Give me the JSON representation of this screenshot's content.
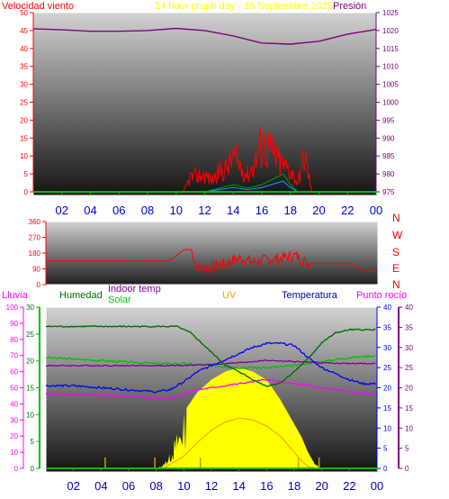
{
  "header": {
    "left_label": "Velocidad viento",
    "center_title": "24 hour graph day - 15 Septiembre 2025",
    "right_label": "Presión"
  },
  "labels": {
    "lluvia": "Lluvia",
    "humedad": "Humedad",
    "indoor_temp": "Indoor temp",
    "solar": "Solar",
    "uv": "UV",
    "temperatura": "Temperatura",
    "punto_rocio": "Punto rocío"
  },
  "colors": {
    "wind": "#ff0000",
    "pressure": "#800080",
    "humidity": "#007000",
    "solar_fill": "#ffff00",
    "uv": "#ffa500",
    "temperature": "#0000ff",
    "dewpoint": "#ff00ff",
    "indoor": "#80009a"
  },
  "chart_data": [
    {
      "name": "wind-pressure",
      "type": "line",
      "x_ticks": [
        "02",
        "04",
        "06",
        "08",
        "10",
        "12",
        "14",
        "16",
        "18",
        "20",
        "22",
        "00"
      ],
      "left_axis": {
        "label": "Velocidad viento",
        "ticks": [
          0,
          5,
          10,
          15,
          20,
          25,
          30,
          35,
          40,
          45,
          50
        ],
        "range": [
          0,
          50
        ]
      },
      "right_axis": {
        "label": "Presión",
        "ticks": [
          975,
          980,
          985,
          990,
          995,
          1000,
          1005,
          1010,
          1015,
          1020,
          1025
        ],
        "range": [
          975,
          1025
        ]
      },
      "series": [
        {
          "name": "Presión",
          "axis": "right",
          "x": [
            0,
            2,
            4,
            6,
            8,
            10,
            12,
            14,
            16,
            18,
            20,
            22,
            24
          ],
          "values": [
            1020.5,
            1020.2,
            1019.8,
            1019.8,
            1020.0,
            1020.6,
            1020.0,
            1018.5,
            1016.5,
            1016.2,
            1017.0,
            1019.0,
            1020.3
          ]
        },
        {
          "name": "Velocidad viento gust",
          "axis": "left",
          "x": [
            10.5,
            11,
            12,
            12.5,
            13,
            13.5,
            14,
            14.5,
            15,
            15.5,
            16,
            16.5,
            17,
            17.5,
            18,
            18.5,
            19,
            19.5
          ],
          "values": [
            0,
            5,
            6,
            4,
            7,
            8,
            12,
            9,
            6,
            10,
            17,
            15,
            12,
            9,
            8,
            3,
            13,
            0
          ]
        },
        {
          "name": "Velocidad viento avg",
          "axis": "left",
          "x": [
            12,
            13,
            14,
            15,
            16,
            17,
            17.5,
            18,
            18.5
          ],
          "values": [
            0,
            1,
            2,
            1,
            2,
            4,
            5,
            2,
            0
          ]
        }
      ]
    },
    {
      "name": "wind-direction",
      "type": "scatter",
      "x_ticks": [
        "02",
        "04",
        "06",
        "08",
        "10",
        "12",
        "14",
        "16",
        "18",
        "20",
        "22",
        "00"
      ],
      "left_axis": {
        "ticks": [
          0,
          90,
          180,
          270,
          360
        ],
        "range": [
          0,
          360
        ]
      },
      "right_axis_labels": [
        "N",
        "W",
        "S",
        "E",
        "N"
      ],
      "series": [
        {
          "name": "Dirección",
          "x": [
            0,
            8.5,
            9,
            10,
            10.5,
            11,
            12,
            13,
            14,
            15,
            16,
            17,
            18,
            19,
            20,
            21,
            22,
            23,
            24
          ],
          "values": [
            135,
            135,
            140,
            200,
            200,
            90,
            100,
            120,
            150,
            130,
            140,
            150,
            165,
            120,
            120,
            120,
            120,
            75,
            75
          ]
        }
      ]
    },
    {
      "name": "temperature-humidity",
      "type": "line",
      "x_ticks": [
        "02",
        "04",
        "06",
        "08",
        "10",
        "12",
        "14",
        "16",
        "18",
        "20",
        "22",
        "00"
      ],
      "rain_axis": {
        "label": "Lluvia",
        "ticks": [
          0,
          10,
          20,
          30,
          40,
          50,
          60,
          70,
          80,
          90,
          100
        ],
        "range": [
          0,
          100
        ]
      },
      "humidity_axis": {
        "label": "Humedad",
        "ticks": [
          0,
          5,
          10,
          15,
          20,
          25,
          30
        ],
        "range": [
          0,
          30
        ]
      },
      "temp_axis": {
        "label": "Temperatura",
        "ticks": [
          0,
          5,
          10,
          15,
          20,
          25,
          30,
          35,
          40
        ],
        "range": [
          0,
          40
        ]
      },
      "uv_axis": {
        "label": "UV",
        "ticks": [
          0,
          5,
          10,
          15,
          20,
          25,
          30,
          35,
          40
        ],
        "range": [
          0,
          40
        ]
      },
      "series": [
        {
          "name": "Humedad",
          "x": [
            0,
            4,
            8,
            9.5,
            10.5,
            12,
            13,
            14,
            15,
            16,
            17,
            18,
            19,
            20,
            21,
            22,
            23,
            24
          ],
          "values": [
            88,
            88,
            88,
            88,
            84,
            72,
            64,
            60,
            55,
            51,
            53,
            60,
            68,
            78,
            84,
            86,
            86,
            86
          ]
        },
        {
          "name": "Temperatura",
          "x": [
            0,
            2,
            4,
            6,
            8,
            9,
            10,
            11,
            12,
            13,
            14,
            15,
            16,
            17,
            18,
            19,
            20,
            21,
            22,
            23,
            24
          ],
          "values": [
            20.5,
            20.5,
            20,
            19.5,
            19,
            19.5,
            21.5,
            24,
            25.5,
            27,
            28.5,
            30,
            31,
            31,
            30.5,
            27.5,
            25,
            23.5,
            22,
            21,
            21
          ]
        },
        {
          "name": "Punto rocío",
          "x": [
            0,
            4,
            8,
            9,
            10,
            11,
            12,
            13,
            14,
            15,
            16,
            17,
            18,
            19,
            20,
            21,
            22,
            23,
            24
          ],
          "values": [
            18.5,
            18.2,
            17.5,
            17.5,
            18.5,
            19.5,
            20,
            20.5,
            21,
            21.5,
            22,
            21.5,
            21,
            20.5,
            20,
            19.5,
            19,
            18.5,
            18.5
          ]
        },
        {
          "name": "Indoor temp",
          "x": [
            0,
            4,
            8,
            10,
            12,
            14,
            16,
            18,
            20,
            22,
            24
          ],
          "values": [
            25.5,
            25.5,
            25.5,
            25.5,
            25.8,
            26.2,
            26.8,
            26.5,
            26.2,
            26,
            26
          ]
        },
        {
          "name": "Solar",
          "x": [
            0,
            8,
            10,
            12,
            14,
            16,
            17,
            18,
            19,
            20,
            22,
            24
          ],
          "values": [
            27.5,
            26,
            26,
            25.5,
            25,
            25,
            25.2,
            25.5,
            26,
            26.5,
            27.5,
            28
          ]
        },
        {
          "name": "UV",
          "x": [
            8.5,
            10,
            11,
            12,
            13,
            14,
            15,
            16,
            17,
            18,
            18.5,
            19,
            19.5
          ],
          "values": [
            0,
            3,
            6.5,
            9.5,
            11.5,
            12.5,
            12,
            10.5,
            8,
            4,
            2,
            0.5,
            0
          ]
        },
        {
          "name": "Radiación solar",
          "x": [
            8,
            8.5,
            9,
            9.5,
            10,
            11,
            12,
            13,
            14,
            15,
            16,
            17,
            18,
            18.5,
            19,
            19.5,
            20
          ],
          "values": [
            0,
            1,
            4,
            9,
            14,
            19,
            22,
            24,
            25,
            24,
            22,
            17,
            11,
            8,
            4,
            1,
            0
          ]
        }
      ]
    }
  ]
}
